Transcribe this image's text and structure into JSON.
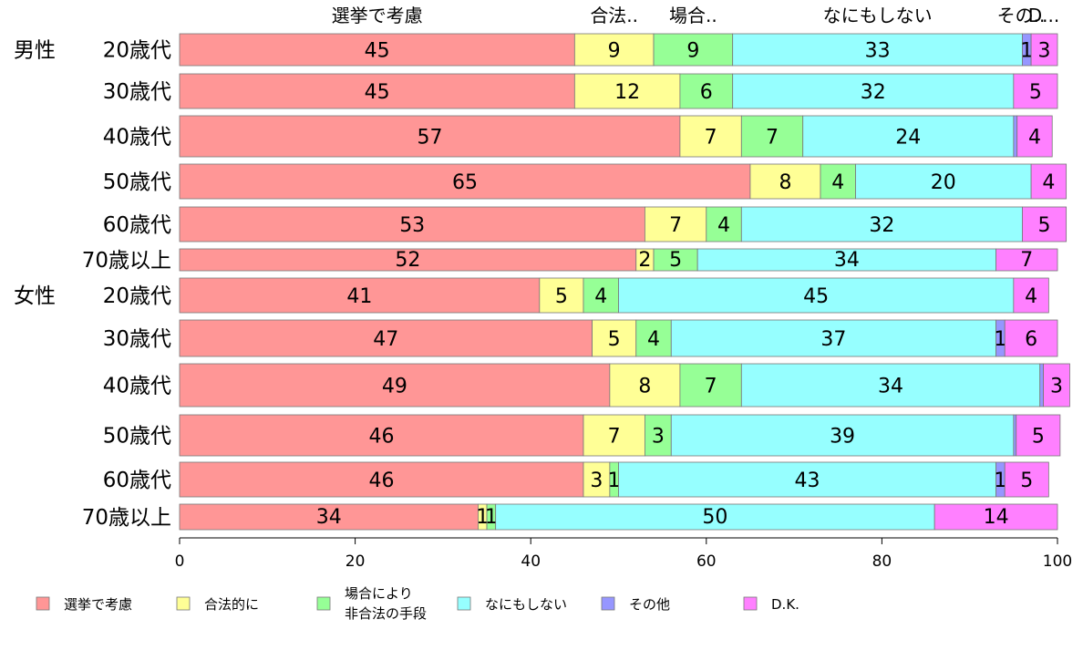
{
  "chart_data": {
    "type": "bar",
    "orientation": "horizontal",
    "stacked": true,
    "xlim": [
      0,
      100
    ],
    "xticks": [
      0,
      20,
      40,
      60,
      80,
      100
    ],
    "top_labels": [
      "選挙で考慮",
      "合法..",
      "場合..",
      "なにもしない",
      "その..",
      "D..."
    ],
    "legend_position": "bottom",
    "groups": [
      {
        "label": "男性",
        "start": 0
      },
      {
        "label": "女性",
        "start": 6
      }
    ],
    "categories": [
      "20歳代",
      "30歳代",
      "40歳代",
      "50歳代",
      "60歳代",
      "70歳以上",
      "20歳代",
      "30歳代",
      "40歳代",
      "50歳代",
      "60歳代",
      "70歳以上"
    ],
    "series": [
      {
        "name": "選挙で考慮",
        "color": "#ff9696",
        "values": [
          45,
          45,
          57,
          65,
          53,
          52,
          41,
          47,
          49,
          46,
          46,
          34
        ]
      },
      {
        "name": "合法的に",
        "color": "#ffff96",
        "values": [
          9,
          12,
          7,
          8,
          7,
          2,
          5,
          5,
          8,
          7,
          3,
          1
        ]
      },
      {
        "name": "場合により\n非合法の手段",
        "color": "#96ff96",
        "values": [
          9,
          6,
          7,
          4,
          4,
          5,
          4,
          4,
          7,
          3,
          1,
          1
        ]
      },
      {
        "name": "なにもしない",
        "color": "#96ffff",
        "values": [
          33,
          32,
          24,
          20,
          32,
          34,
          45,
          37,
          34,
          39,
          43,
          50
        ]
      },
      {
        "name": "その他",
        "color": "#9696ff",
        "values": [
          1,
          0,
          0.4,
          0,
          0,
          0,
          0,
          1,
          0.4,
          0.3,
          1,
          0
        ]
      },
      {
        "name": "D.K.",
        "color": "#ff80ff",
        "values": [
          3,
          5,
          4,
          4,
          5,
          7,
          4,
          6,
          3,
          5,
          5,
          14
        ]
      }
    ]
  }
}
